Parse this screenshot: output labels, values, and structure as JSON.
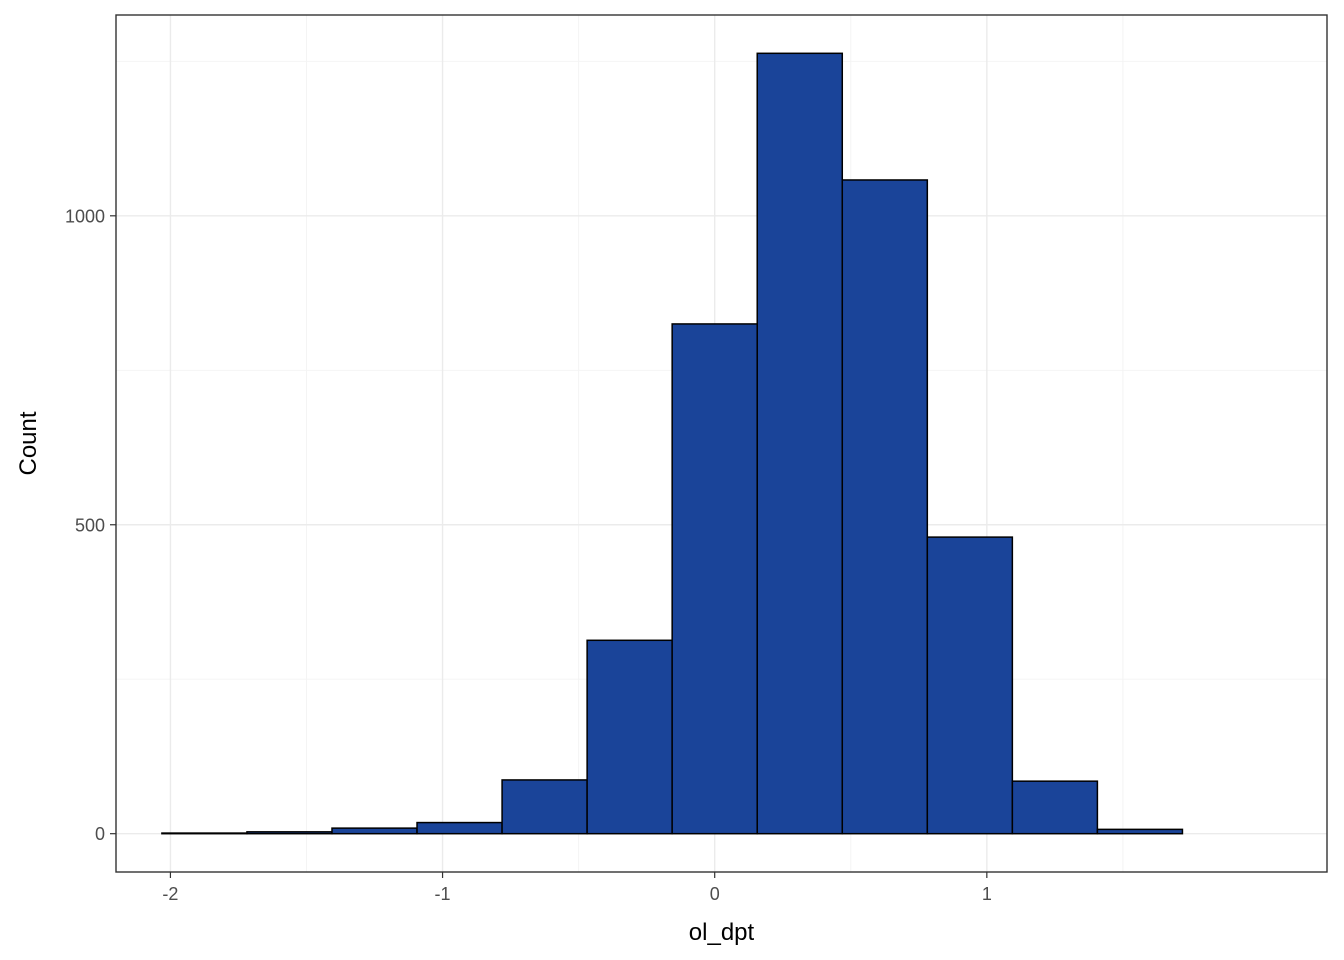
{
  "chart_data": {
    "type": "bar",
    "subtype": "histogram",
    "xlabel": "ol_dpt",
    "ylabel": "Count",
    "xlim": [
      -2.2,
      2.25
    ],
    "ylim": [
      -62,
      1325
    ],
    "x_ticks": [
      -2,
      -1,
      0,
      1
    ],
    "x_tick_labels": [
      "-2",
      "-1",
      "0",
      "1"
    ],
    "y_ticks": [
      0,
      500,
      1000
    ],
    "y_tick_labels": [
      "0",
      "500",
      "1000"
    ],
    "grid": true,
    "bin_width": 0.3125,
    "bins": [
      {
        "x_start": -2.0313,
        "x_end": -1.7188,
        "count": 1
      },
      {
        "x_start": -1.7188,
        "x_end": -1.4063,
        "count": 3
      },
      {
        "x_start": -1.4063,
        "x_end": -1.0938,
        "count": 9
      },
      {
        "x_start": -1.0938,
        "x_end": -0.7813,
        "count": 18
      },
      {
        "x_start": -0.7813,
        "x_end": -0.4688,
        "count": 87
      },
      {
        "x_start": -0.4688,
        "x_end": -0.1563,
        "count": 313
      },
      {
        "x_start": -0.1563,
        "x_end": 0.1563,
        "count": 825
      },
      {
        "x_start": 0.1563,
        "x_end": 0.4688,
        "count": 1263
      },
      {
        "x_start": 0.4688,
        "x_end": 0.7813,
        "count": 1058
      },
      {
        "x_start": 0.7813,
        "x_end": 1.0938,
        "count": 480
      },
      {
        "x_start": 1.0938,
        "x_end": 1.4063,
        "count": 85
      },
      {
        "x_start": 1.4063,
        "x_end": 1.7188,
        "count": 7
      }
    ],
    "colors": {
      "bar_fill": "#1a4499",
      "bar_outline": "#000000",
      "panel_background": "#ffffff",
      "grid": "#ebebeb",
      "border": "#333333"
    }
  }
}
